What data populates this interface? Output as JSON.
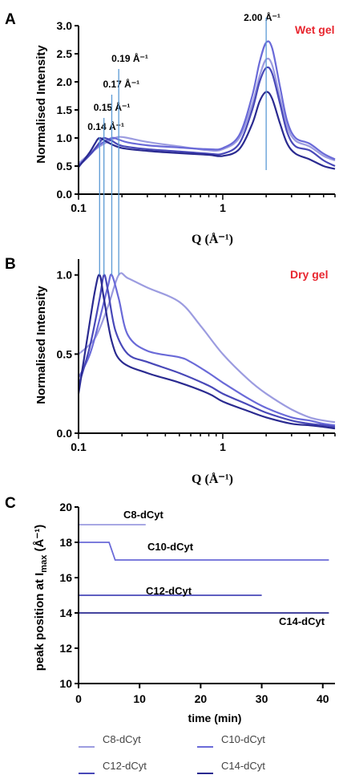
{
  "colors": {
    "C8-dCyt": "#9c9ce0",
    "C10-dCyt": "#6a6ad8",
    "C12-dCyt": "#4848b8",
    "C14-dCyt": "#2a2a90",
    "peak_line": "#5b9ad5",
    "condition_text": "#e8262f"
  },
  "panels": {
    "A": {
      "letter": "A",
      "condition": "Wet gel"
    },
    "B": {
      "letter": "B",
      "condition": "Dry gel"
    },
    "C": {
      "letter": "C"
    }
  },
  "legend": [
    "C8-dCyt",
    "C10-dCyt",
    "C12-dCyt",
    "C14-dCyt"
  ],
  "chart_data": [
    {
      "panel": "A",
      "type": "line",
      "ylabel": "Normalised Intensity",
      "xlabel": "Q (Å⁻¹)",
      "xscale": "log",
      "xlim": [
        0.1,
        6
      ],
      "ylim": [
        0,
        3
      ],
      "xticks": [
        "0.1",
        "1"
      ],
      "yticks": [
        "0.0",
        "0.5",
        "1.0",
        "1.5",
        "2.0",
        "2.5",
        "3.0"
      ],
      "annotations": [
        {
          "text": "0.14 Å⁻¹",
          "x": 0.14
        },
        {
          "text": "0.15 Å⁻¹",
          "x": 0.15
        },
        {
          "text": "0.17 Å⁻¹",
          "x": 0.17
        },
        {
          "text": "0.19 Å⁻¹",
          "x": 0.19
        },
        {
          "text": "2.00 Å⁻¹",
          "x": 2.0
        }
      ],
      "series": [
        {
          "name": "C8-dCyt",
          "x": [
            0.1,
            0.12,
            0.14,
            0.17,
            0.19,
            0.22,
            0.3,
            0.5,
            0.8,
            1.0,
            1.3,
            1.6,
            1.8,
            2.0,
            2.2,
            2.5,
            2.8,
            3.2,
            4.0,
            5.0,
            6.0
          ],
          "y": [
            0.55,
            0.72,
            0.85,
            0.97,
            1.02,
            1.0,
            0.93,
            0.85,
            0.78,
            0.8,
            1.0,
            1.6,
            2.1,
            2.4,
            2.3,
            1.7,
            1.2,
            0.95,
            0.85,
            0.68,
            0.6
          ]
        },
        {
          "name": "C10-dCyt",
          "x": [
            0.1,
            0.12,
            0.14,
            0.17,
            0.19,
            0.22,
            0.3,
            0.5,
            0.8,
            1.0,
            1.3,
            1.6,
            1.8,
            2.0,
            2.2,
            2.5,
            2.8,
            3.2,
            4.0,
            5.0,
            6.0
          ],
          "y": [
            0.52,
            0.7,
            0.88,
            1.0,
            0.97,
            0.92,
            0.87,
            0.83,
            0.8,
            0.82,
            1.05,
            1.75,
            2.35,
            2.7,
            2.6,
            1.9,
            1.3,
            1.0,
            0.9,
            0.72,
            0.62
          ]
        },
        {
          "name": "C12-dCyt",
          "x": [
            0.1,
            0.12,
            0.14,
            0.15,
            0.17,
            0.2,
            0.3,
            0.5,
            0.8,
            1.0,
            1.3,
            1.6,
            1.8,
            2.0,
            2.2,
            2.5,
            2.8,
            3.2,
            4.0,
            5.0,
            6.0
          ],
          "y": [
            0.5,
            0.7,
            0.92,
            1.0,
            0.95,
            0.86,
            0.8,
            0.76,
            0.72,
            0.72,
            0.9,
            1.5,
            2.0,
            2.25,
            2.15,
            1.6,
            1.1,
            0.85,
            0.78,
            0.6,
            0.5
          ]
        },
        {
          "name": "C14-dCyt",
          "x": [
            0.1,
            0.12,
            0.13,
            0.14,
            0.16,
            0.2,
            0.3,
            0.5,
            0.8,
            1.0,
            1.3,
            1.6,
            1.8,
            2.0,
            2.2,
            2.5,
            2.8,
            3.2,
            4.0,
            5.0,
            6.0
          ],
          "y": [
            0.48,
            0.75,
            0.9,
            1.0,
            0.92,
            0.82,
            0.77,
            0.73,
            0.7,
            0.68,
            0.8,
            1.25,
            1.65,
            1.82,
            1.7,
            1.25,
            0.9,
            0.72,
            0.62,
            0.5,
            0.45
          ]
        }
      ]
    },
    {
      "panel": "B",
      "type": "line",
      "ylabel": "Normalised Intensity",
      "xlabel": "Q (Å⁻¹)",
      "xscale": "log",
      "xlim": [
        0.1,
        6
      ],
      "ylim": [
        0,
        1.1
      ],
      "xticks": [
        "0.1",
        "1"
      ],
      "yticks": [
        "0.0",
        "0.5",
        "1.0"
      ],
      "series": [
        {
          "name": "C8-dCyt",
          "x": [
            0.1,
            0.13,
            0.16,
            0.19,
            0.22,
            0.3,
            0.5,
            0.7,
            1.0,
            1.5,
            2.0,
            3.0,
            4.0,
            5.0,
            6.0
          ],
          "y": [
            0.5,
            0.6,
            0.8,
            1.0,
            0.98,
            0.92,
            0.83,
            0.68,
            0.5,
            0.34,
            0.25,
            0.15,
            0.1,
            0.08,
            0.07
          ]
        },
        {
          "name": "C10-dCyt",
          "x": [
            0.1,
            0.12,
            0.14,
            0.16,
            0.17,
            0.19,
            0.22,
            0.3,
            0.5,
            0.6,
            0.8,
            1.0,
            1.5,
            2.0,
            3.0,
            4.0,
            5.0,
            6.0
          ],
          "y": [
            0.35,
            0.5,
            0.72,
            0.93,
            1.0,
            0.85,
            0.62,
            0.52,
            0.48,
            0.45,
            0.38,
            0.32,
            0.22,
            0.16,
            0.1,
            0.08,
            0.06,
            0.05
          ]
        },
        {
          "name": "C12-dCyt",
          "x": [
            0.1,
            0.12,
            0.14,
            0.15,
            0.16,
            0.18,
            0.22,
            0.3,
            0.5,
            0.8,
            1.0,
            1.5,
            2.0,
            3.0,
            4.0,
            5.0,
            6.0
          ],
          "y": [
            0.3,
            0.55,
            0.85,
            1.0,
            0.9,
            0.65,
            0.5,
            0.45,
            0.38,
            0.3,
            0.25,
            0.18,
            0.13,
            0.08,
            0.06,
            0.05,
            0.04
          ]
        },
        {
          "name": "C14-dCyt",
          "x": [
            0.1,
            0.115,
            0.13,
            0.14,
            0.15,
            0.17,
            0.2,
            0.3,
            0.5,
            0.8,
            1.0,
            1.5,
            2.0,
            3.0,
            4.0,
            5.0,
            6.0
          ],
          "y": [
            0.25,
            0.6,
            0.9,
            1.0,
            0.85,
            0.58,
            0.45,
            0.38,
            0.32,
            0.25,
            0.2,
            0.14,
            0.1,
            0.06,
            0.05,
            0.04,
            0.03
          ]
        }
      ]
    },
    {
      "panel": "C",
      "type": "line",
      "ylabel": "peak position at I",
      "ylabel_sub": "max",
      "ylabel_unit": " (Å⁻¹)",
      "xlabel": "time (min)",
      "xlim": [
        0,
        42
      ],
      "ylim": [
        10,
        20
      ],
      "xticks": [
        "0",
        "10",
        "20",
        "30",
        "40"
      ],
      "yticks": [
        "10",
        "12",
        "14",
        "16",
        "18",
        "20"
      ],
      "series": [
        {
          "name": "C8-dCyt",
          "x": [
            0,
            11
          ],
          "y": [
            19,
            19
          ]
        },
        {
          "name": "C10-dCyt",
          "x": [
            0,
            5,
            6,
            41
          ],
          "y": [
            18,
            18,
            17,
            17
          ]
        },
        {
          "name": "C12-dCyt",
          "x": [
            0,
            30
          ],
          "y": [
            15,
            15
          ]
        },
        {
          "name": "C14-dCyt",
          "x": [
            0,
            41
          ],
          "y": [
            14,
            14
          ]
        }
      ]
    }
  ]
}
